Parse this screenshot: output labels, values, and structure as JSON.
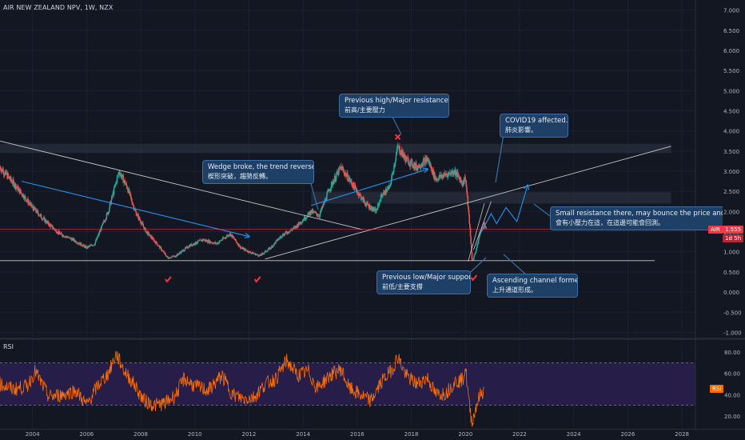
{
  "header": {
    "title": "AIR NEW ZEALAND NPV, 1W, NZX"
  },
  "rsi": {
    "title": "RSI",
    "tag": "RSI"
  },
  "price_tag": {
    "symbol": "AIR",
    "value": "1.555",
    "countdown": "1d 5h"
  },
  "colors": {
    "background": "#131722",
    "candle_up": "#26a69a",
    "candle_down": "#ef5350",
    "callout_bg": "#1e3f66",
    "callout_border": "#3e6d9f",
    "arrow": "#2196f3",
    "rsi_line": "#ff6d00",
    "rsi_band": "#2a1e4f",
    "price_line": "#f23645",
    "marker": "#f23645"
  },
  "annotations": {
    "wedge": {
      "en": "Wedge broke, the trend reversed.",
      "zh": "楔形突破，趨勢反轉。"
    },
    "prev_high": {
      "en": "Previous high/Major resistance.",
      "zh": "前高/主要壓力"
    },
    "covid": {
      "en": "COVID19 affected.",
      "zh": "肺炎影響。"
    },
    "small_resistance": {
      "en": "Small resistance there, may bounce the price and retest",
      "zh": "會有小壓力在這，在這邊可能會回測。"
    },
    "prev_low": {
      "en": "Previous low/Major support.",
      "zh": "前低/主要支撐"
    },
    "channel": {
      "en": "Ascending channel formed.",
      "zh": "上升通道形成。"
    }
  },
  "chart_data": {
    "type": "candlestick",
    "price_axis": {
      "ticks": [
        "7.000",
        "6.500",
        "6.000",
        "5.500",
        "5.000",
        "4.500",
        "4.000",
        "3.500",
        "3.000",
        "2.500",
        "2.000",
        "1.500",
        "1.000",
        "0.500",
        "0.000",
        "-0.500",
        "-1.000"
      ],
      "range": [
        -1.15,
        7.25
      ]
    },
    "rsi_axis": {
      "ticks": [
        "80.00",
        "60.00",
        "40.00",
        "20.00"
      ],
      "range": [
        8,
        92
      ],
      "bands": [
        30,
        70
      ]
    },
    "time_axis": {
      "ticks": [
        "2004",
        "2006",
        "2008",
        "2010",
        "2012",
        "2014",
        "2016",
        "2018",
        "2020",
        "2022",
        "2024",
        "2026",
        "2028"
      ],
      "range": [
        2002.8,
        2028.5
      ]
    },
    "last_price": 1.555,
    "price_path": [
      [
        2002.8,
        3.1
      ],
      [
        2003.3,
        2.7
      ],
      [
        2003.6,
        2.45
      ],
      [
        2004.0,
        2.1
      ],
      [
        2004.5,
        1.75
      ],
      [
        2005.0,
        1.45
      ],
      [
        2005.5,
        1.3
      ],
      [
        2006.0,
        1.1
      ],
      [
        2006.3,
        1.2
      ],
      [
        2006.8,
        2.0
      ],
      [
        2007.2,
        3.0
      ],
      [
        2007.5,
        2.6
      ],
      [
        2007.8,
        2.0
      ],
      [
        2008.2,
        1.5
      ],
      [
        2008.6,
        1.2
      ],
      [
        2009.0,
        0.85
      ],
      [
        2009.3,
        0.9
      ],
      [
        2009.8,
        1.15
      ],
      [
        2010.3,
        1.3
      ],
      [
        2010.8,
        1.2
      ],
      [
        2011.3,
        1.45
      ],
      [
        2011.7,
        1.1
      ],
      [
        2012.0,
        1.0
      ],
      [
        2012.4,
        0.9
      ],
      [
        2012.8,
        1.1
      ],
      [
        2013.2,
        1.4
      ],
      [
        2013.7,
        1.6
      ],
      [
        2014.0,
        1.8
      ],
      [
        2014.3,
        2.0
      ],
      [
        2014.6,
        1.9
      ],
      [
        2015.0,
        2.6
      ],
      [
        2015.4,
        3.1
      ],
      [
        2015.7,
        2.8
      ],
      [
        2016.0,
        2.5
      ],
      [
        2016.3,
        2.2
      ],
      [
        2016.7,
        2.0
      ],
      [
        2016.9,
        2.4
      ],
      [
        2017.2,
        2.6
      ],
      [
        2017.5,
        3.6
      ],
      [
        2017.8,
        3.3
      ],
      [
        2018.2,
        3.1
      ],
      [
        2018.6,
        3.3
      ],
      [
        2018.9,
        2.8
      ],
      [
        2019.2,
        2.9
      ],
      [
        2019.6,
        3.0
      ],
      [
        2019.9,
        2.7
      ],
      [
        2020.0,
        2.85
      ],
      [
        2020.15,
        1.7
      ],
      [
        2020.25,
        0.75
      ],
      [
        2020.4,
        1.05
      ],
      [
        2020.55,
        1.5
      ],
      [
        2020.7,
        1.7
      ],
      [
        2020.78,
        1.555
      ]
    ],
    "rsi_path": [
      [
        2002.8,
        50
      ],
      [
        2003.3,
        45
      ],
      [
        2003.8,
        48
      ],
      [
        2004.1,
        62
      ],
      [
        2004.6,
        38
      ],
      [
        2005.1,
        40
      ],
      [
        2005.6,
        44
      ],
      [
        2006.0,
        30
      ],
      [
        2006.4,
        48
      ],
      [
        2006.8,
        60
      ],
      [
        2007.1,
        78
      ],
      [
        2007.4,
        62
      ],
      [
        2007.8,
        48
      ],
      [
        2008.1,
        35
      ],
      [
        2008.5,
        30
      ],
      [
        2008.9,
        32
      ],
      [
        2009.3,
        40
      ],
      [
        2009.6,
        55
      ],
      [
        2010.0,
        48
      ],
      [
        2010.5,
        44
      ],
      [
        2011.0,
        58
      ],
      [
        2011.4,
        40
      ],
      [
        2011.8,
        36
      ],
      [
        2012.2,
        38
      ],
      [
        2012.6,
        50
      ],
      [
        2013.0,
        55
      ],
      [
        2013.4,
        72
      ],
      [
        2013.8,
        58
      ],
      [
        2014.2,
        62
      ],
      [
        2014.5,
        46
      ],
      [
        2015.0,
        58
      ],
      [
        2015.4,
        64
      ],
      [
        2015.7,
        46
      ],
      [
        2016.1,
        40
      ],
      [
        2016.5,
        34
      ],
      [
        2016.9,
        52
      ],
      [
        2017.3,
        64
      ],
      [
        2017.5,
        76
      ],
      [
        2017.8,
        58
      ],
      [
        2018.2,
        50
      ],
      [
        2018.6,
        56
      ],
      [
        2018.9,
        40
      ],
      [
        2019.3,
        42
      ],
      [
        2019.6,
        52
      ],
      [
        2019.9,
        54
      ],
      [
        2020.0,
        66
      ],
      [
        2020.15,
        28
      ],
      [
        2020.25,
        13
      ],
      [
        2020.4,
        30
      ],
      [
        2020.55,
        40
      ],
      [
        2020.7,
        44
      ]
    ]
  }
}
